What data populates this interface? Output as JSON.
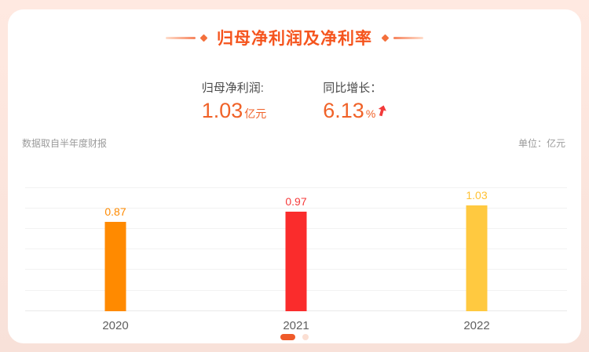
{
  "header": {
    "title": "归母净利润及净利率"
  },
  "stats": {
    "net_profit": {
      "label": "归母净利润:",
      "value": "1.03",
      "unit": "亿元"
    },
    "yoy_growth": {
      "label": "同比增长：",
      "value": "6.13",
      "unit": "%",
      "trend": "up",
      "trend_icon": "arrow-up-red"
    }
  },
  "meta": {
    "source_note": "数据取自半年度财报",
    "unit_label": "单位：亿元"
  },
  "chart_data": {
    "type": "bar",
    "title": "归母净利润及净利率",
    "categories": [
      "2020",
      "2021",
      "2022"
    ],
    "values": [
      0.87,
      0.97,
      1.03
    ],
    "value_labels": [
      "0.87",
      "0.97",
      "1.03"
    ],
    "series_name": "归母净利润",
    "unit": "亿元",
    "xlabel": "",
    "ylabel": "",
    "ylim": [
      0,
      1.2
    ],
    "grid_step": 0.2,
    "grid": true,
    "legend": "none",
    "label_position": "top",
    "bar_colors": [
      "#ff8a00",
      "#fa2c2c",
      "#ffc940"
    ],
    "label_colors": [
      "#ff8a00",
      "#f63b3b",
      "#ffc133"
    ]
  },
  "pagination": {
    "dots": 2,
    "active_index": 0
  },
  "colors": {
    "accent": "#f5541d",
    "stat-value": "#f06228",
    "arrow-red": "#f23a3a",
    "page-bg-top": "#ffe9e1",
    "page-bg-bottom": "#f8e1d9",
    "dot-active": "#ef5a2a",
    "dot-inactive": "#fbdfd3"
  }
}
